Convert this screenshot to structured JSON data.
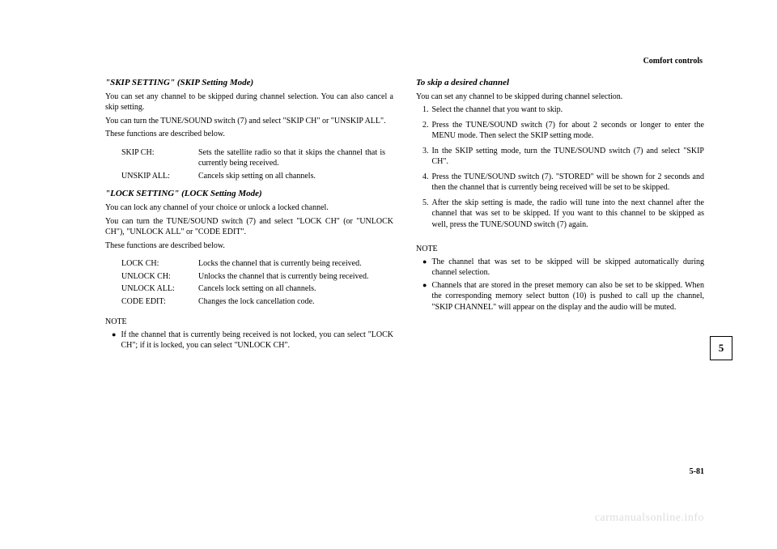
{
  "header": {
    "section": "Comfort controls"
  },
  "left": {
    "skip": {
      "title": "\"SKIP SETTING\" (SKIP Setting Mode)",
      "p1": "You can set any channel to be skipped during channel selection. You can also cancel a skip setting.",
      "p2": "You can turn the TUNE/SOUND switch (7) and select \"SKIP CH\" or \"UNSKIP ALL\".",
      "p3": "These functions are described below.",
      "rows": [
        {
          "label": "SKIP CH:",
          "desc": "Sets the satellite radio so that it skips the channel that is currently  being received."
        },
        {
          "label": "UNSKIP ALL:",
          "desc": "Cancels skip setting on all channels."
        }
      ]
    },
    "lock": {
      "title": "\"LOCK SETTING\" (LOCK Setting Mode)",
      "p1": "You can lock any channel of your choice or unlock a locked channel.",
      "p2": "You can turn the TUNE/SOUND switch (7) and select \"LOCK CH\" (or \"UNLOCK CH\"), \"UNLOCK ALL\" or \"CODE EDIT\".",
      "p3": "These functions are described below.",
      "rows": [
        {
          "label": "LOCK CH:",
          "desc": "Locks the channel that is currently being received."
        },
        {
          "label": "UNLOCK CH:",
          "desc": "Unlocks the channel that is currently being received."
        },
        {
          "label": "UNLOCK ALL:",
          "desc": "Cancels lock setting on all channels."
        },
        {
          "label": "CODE EDIT:",
          "desc": "Changes the lock cancellation code."
        }
      ],
      "note_label": "NOTE",
      "note_bullet": "If the channel that is currently being received is not locked, you can select \"LOCK CH\"; if it is locked, you can select \"UNLOCK CH\"."
    }
  },
  "right": {
    "title": "To skip a desired channel",
    "p1": "You can set any channel to be skipped during channel selection.",
    "steps": [
      "Select the channel that you want to skip.",
      "Press the TUNE/SOUND switch (7) for about 2 seconds or longer to enter the MENU mode. Then select the SKIP setting mode.",
      "In the SKIP setting mode, turn the TUNE/SOUND switch (7) and select \"SKIP CH\".",
      "Press the TUNE/SOUND switch (7). \"STORED\" will be shown for 2 seconds and then the channel that is currently being received will be set to be skipped.",
      "After the skip setting is made, the radio will tune into the next channel after the channel that was set to be skipped. If you want to this channel to be skipped as well, press the TUNE/SOUND switch (7) again."
    ],
    "note_label": "NOTE",
    "notes": [
      "The channel that was set to be skipped will be skipped automatically during channel selection.",
      "Channels that are stored in the preset memory can also be set to be skipped. When the corresponding memory select button (10) is pushed to call up the channel, \"SKIP CHANNEL\" will appear on the display and the audio will be muted."
    ]
  },
  "tab": "5",
  "pagenum": "5-81",
  "watermark": "carmanualsonline.info"
}
